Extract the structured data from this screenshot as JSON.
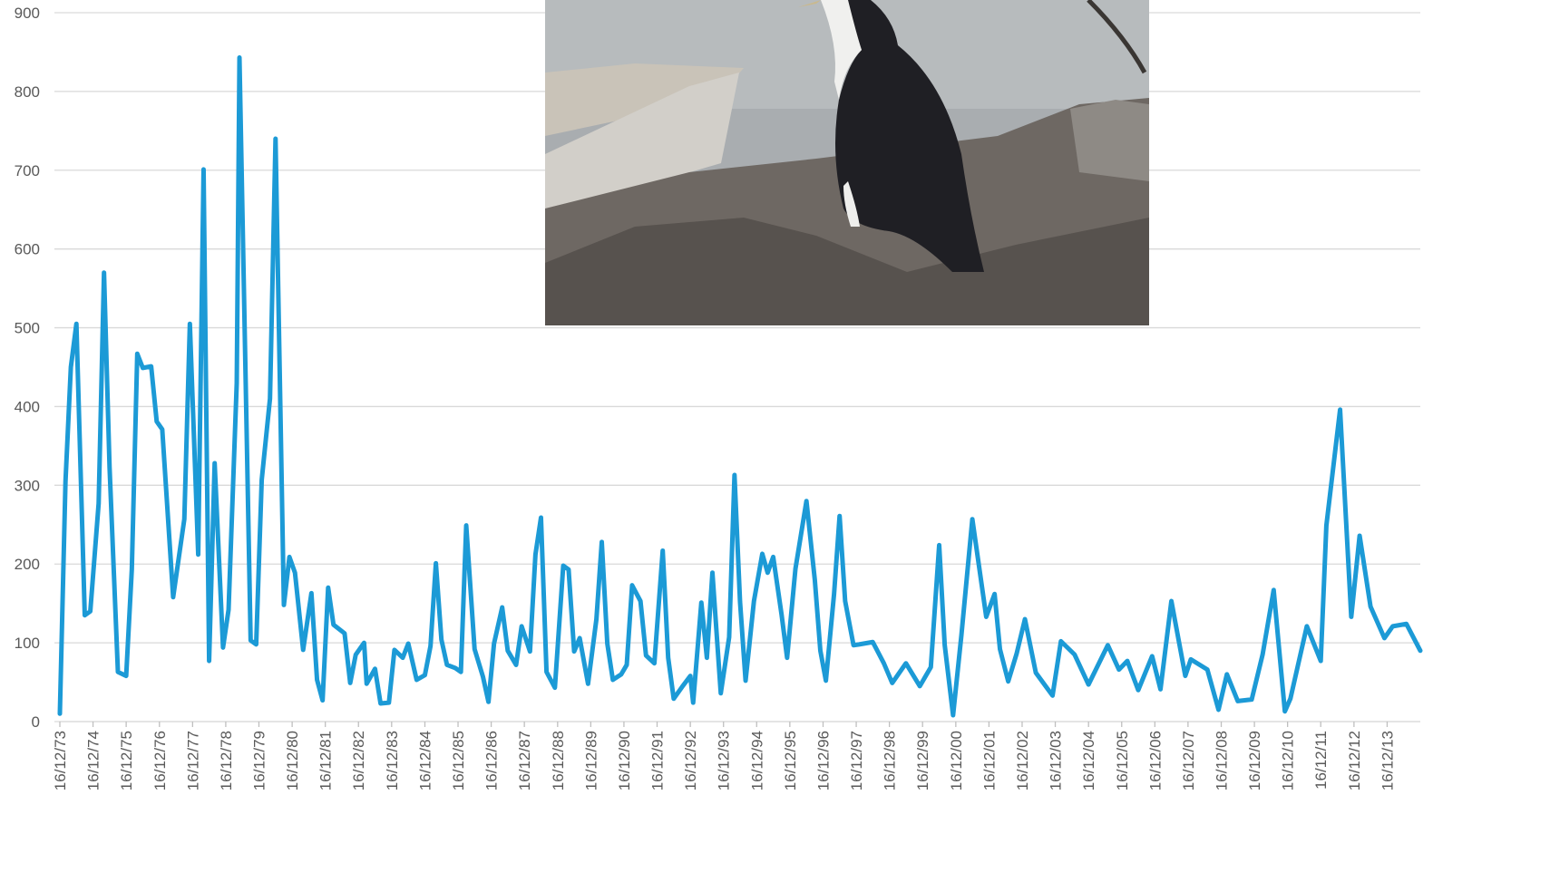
{
  "chart_data": {
    "type": "line",
    "color": "#1c9ad6",
    "grid": true,
    "ylim": [
      0,
      900
    ],
    "yticks": [
      0,
      100,
      200,
      300,
      400,
      500,
      600,
      700,
      800,
      900
    ],
    "xlim": [
      "16/12/73",
      "16/12/14"
    ],
    "xticks": [
      "16/12/73",
      "16/12/74",
      "16/12/75",
      "16/12/76",
      "16/12/77",
      "16/12/78",
      "16/12/79",
      "16/12/80",
      "16/12/81",
      "16/12/82",
      "16/12/83",
      "16/12/84",
      "16/12/85",
      "16/12/86",
      "16/12/87",
      "16/12/88",
      "16/12/89",
      "16/12/90",
      "16/12/91",
      "16/12/92",
      "16/12/93",
      "16/12/94",
      "16/12/95",
      "16/12/96",
      "16/12/97",
      "16/12/98",
      "16/12/99",
      "16/12/00",
      "16/12/01",
      "16/12/02",
      "16/12/03",
      "16/12/04",
      "16/12/05",
      "16/12/06",
      "16/12/07",
      "16/12/08",
      "16/12/09",
      "16/12/10",
      "16/12/11",
      "16/12/12",
      "16/12/13"
    ],
    "x": [
      "16/12/73",
      "16/02/74",
      "16/04/74",
      "16/06/74",
      "16/09/74",
      "16/11/74",
      "16/02/75",
      "16/04/75",
      "16/06/75",
      "16/09/75",
      "16/12/75",
      "16/02/76",
      "16/04/76",
      "16/06/76",
      "16/09/76",
      "16/11/76",
      "16/01/77",
      "16/05/77",
      "16/09/77",
      "16/11/77",
      "16/02/78",
      "16/04/78",
      "16/06/78",
      "16/08/78",
      "16/11/78",
      "16/01/79",
      "16/04/79",
      "16/05/79",
      "16/09/79",
      "16/11/79",
      "16/01/80",
      "16/04/80",
      "16/06/80",
      "16/09/80",
      "16/11/80",
      "16/01/81",
      "16/04/81",
      "16/07/81",
      "16/09/81",
      "16/11/81",
      "16/01/82",
      "16/03/82",
      "16/07/82",
      "16/09/82",
      "16/11/82",
      "16/02/83",
      "16/03/83",
      "16/06/83",
      "16/08/83",
      "16/11/83",
      "16/01/84",
      "16/04/84",
      "16/06/84",
      "16/09/84",
      "16/12/84",
      "16/02/85",
      "16/04/85",
      "16/06/85",
      "16/08/85",
      "16/11/85",
      "16/01/86",
      "16/03/86",
      "16/06/86",
      "16/09/86",
      "16/11/86",
      "16/01/87",
      "16/04/87",
      "16/06/87",
      "16/09/87",
      "16/11/87",
      "16/02/88",
      "16/04/88",
      "16/06/88",
      "16/08/88",
      "16/11/88",
      "16/02/89",
      "16/04/89",
      "16/06/89",
      "16/08/89",
      "16/11/89",
      "16/02/90",
      "16/04/90",
      "16/06/90",
      "16/08/90",
      "16/11/90",
      "16/01/91",
      "16/03/91",
      "16/06/91",
      "16/08/91",
      "16/11/91",
      "16/02/92",
      "16/04/92",
      "16/06/92",
      "16/09/92",
      "16/12/92",
      "16/01/93",
      "16/04/93",
      "16/06/93",
      "16/08/93",
      "16/11/93",
      "16/02/94",
      "16/04/94",
      "16/06/94",
      "16/08/94",
      "16/11/94",
      "16/02/95",
      "16/04/95",
      "16/06/95",
      "16/09/95",
      "16/11/95",
      "16/02/96",
      "16/06/96",
      "16/09/96",
      "16/11/96",
      "16/01/97",
      "16/04/97",
      "16/06/97",
      "16/08/97",
      "16/11/97",
      "16/01/98",
      "16/06/98",
      "16/10/98",
      "16/01/99",
      "16/06/99",
      "16/11/99",
      "16/03/00",
      "16/06/00",
      "16/08/00",
      "16/11/00",
      "16/02/01",
      "16/06/01",
      "16/11/01",
      "16/02/02",
      "16/04/02",
      "16/07/02",
      "16/10/02",
      "16/01/03",
      "16/05/03",
      "16/11/03",
      "16/02/04",
      "16/07/04",
      "16/12/04",
      "16/07/05",
      "16/11/05",
      "16/02/06",
      "16/06/06",
      "16/11/06",
      "16/02/07",
      "16/06/07",
      "16/11/07",
      "16/01/08",
      "16/07/08",
      "16/11/08",
      "16/02/09",
      "16/06/09",
      "16/11/09",
      "16/03/10",
      "16/07/10",
      "16/11/10",
      "16/01/11",
      "16/07/11",
      "16/12/11",
      "16/02/12",
      "16/07/12",
      "16/11/12",
      "16/02/13",
      "16/06/13",
      "16/11/13",
      "16/02/14",
      "16/07/14",
      "16/12/14"
    ],
    "values": [
      10,
      305,
      450,
      505,
      135,
      140,
      277,
      570,
      323,
      63,
      58,
      193,
      467,
      449,
      451,
      381,
      371,
      158,
      257,
      505,
      212,
      701,
      77,
      328,
      94,
      142,
      430,
      843,
      103,
      98,
      307,
      410,
      740,
      148,
      209,
      189,
      91,
      163,
      53,
      27,
      170,
      123,
      112,
      49,
      85,
      100,
      48,
      67,
      23,
      24,
      91,
      81,
      99,
      53,
      59,
      96,
      201,
      104,
      72,
      68,
      63,
      249,
      92,
      57,
      25,
      99,
      145,
      90,
      72,
      121,
      89,
      212,
      259,
      63,
      43,
      198,
      193,
      89,
      106,
      48,
      130,
      228,
      99,
      53,
      60,
      72,
      173,
      153,
      84,
      74,
      217,
      81,
      29,
      44,
      58,
      24,
      151,
      81,
      189,
      36,
      107,
      313,
      152,
      52,
      153,
      213,
      189,
      209,
      136,
      81,
      194,
      280,
      180,
      90,
      52,
      162,
      261,
      153,
      97,
      98,
      101,
      74,
      49,
      74,
      45,
      69,
      224,
      97,
      8,
      110,
      257,
      133,
      162,
      92,
      51,
      86,
      130,
      62,
      33,
      102,
      85,
      47,
      97,
      66,
      77,
      40,
      83,
      41,
      153,
      58,
      79,
      66,
      15,
      60,
      26,
      28,
      85,
      167,
      13,
      29,
      121,
      77,
      249,
      396,
      133,
      236,
      146,
      106,
      121,
      124,
      90
    ]
  }
}
